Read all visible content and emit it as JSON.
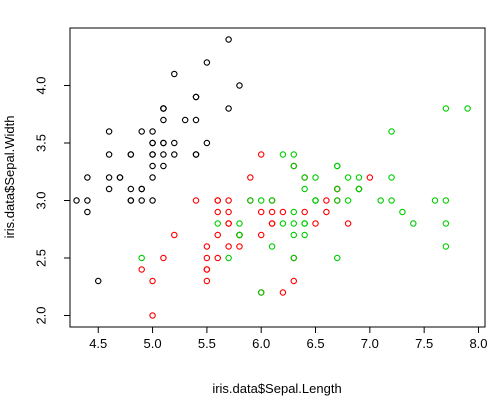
{
  "chart_data": {
    "type": "scatter",
    "title": "",
    "xlabel": "iris.data$Sepal.Length",
    "ylabel": "iris.data$Sepal.Width",
    "xlim": [
      4.24,
      8.06
    ],
    "ylim": [
      1.9,
      4.5
    ],
    "x_ticks": [
      "4.5",
      "5.0",
      "5.5",
      "6.0",
      "6.5",
      "7.0",
      "7.5",
      "8.0"
    ],
    "y_ticks": [
      "2.0",
      "2.5",
      "3.0",
      "3.5",
      "4.0"
    ],
    "grid": false,
    "legend": "none",
    "series": [
      {
        "color": "#000000",
        "points": [
          [
            5.1,
            3.5
          ],
          [
            4.9,
            3.0
          ],
          [
            4.7,
            3.2
          ],
          [
            4.6,
            3.1
          ],
          [
            5.0,
            3.6
          ],
          [
            5.4,
            3.9
          ],
          [
            4.6,
            3.4
          ],
          [
            5.0,
            3.4
          ],
          [
            4.4,
            2.9
          ],
          [
            4.9,
            3.1
          ],
          [
            5.4,
            3.7
          ],
          [
            4.8,
            3.4
          ],
          [
            4.8,
            3.0
          ],
          [
            4.3,
            3.0
          ],
          [
            5.8,
            4.0
          ],
          [
            5.7,
            4.4
          ],
          [
            5.4,
            3.9
          ],
          [
            5.1,
            3.5
          ],
          [
            5.7,
            3.8
          ],
          [
            5.1,
            3.8
          ],
          [
            5.4,
            3.4
          ],
          [
            5.1,
            3.7
          ],
          [
            4.6,
            3.6
          ],
          [
            5.1,
            3.3
          ],
          [
            4.8,
            3.4
          ],
          [
            5.0,
            3.0
          ],
          [
            5.0,
            3.4
          ],
          [
            5.2,
            3.5
          ],
          [
            5.2,
            3.4
          ],
          [
            4.7,
            3.2
          ],
          [
            4.8,
            3.1
          ],
          [
            5.4,
            3.4
          ],
          [
            5.2,
            4.1
          ],
          [
            5.5,
            4.2
          ],
          [
            4.9,
            3.1
          ],
          [
            5.0,
            3.2
          ],
          [
            5.5,
            3.5
          ],
          [
            4.9,
            3.6
          ],
          [
            4.4,
            3.0
          ],
          [
            5.1,
            3.4
          ],
          [
            5.0,
            3.5
          ],
          [
            4.5,
            2.3
          ],
          [
            4.4,
            3.2
          ],
          [
            5.0,
            3.5
          ],
          [
            5.1,
            3.8
          ],
          [
            4.8,
            3.0
          ],
          [
            5.1,
            3.8
          ],
          [
            4.6,
            3.2
          ],
          [
            5.3,
            3.7
          ],
          [
            5.0,
            3.3
          ]
        ]
      },
      {
        "color": "#ff0000",
        "points": [
          [
            7.0,
            3.2
          ],
          [
            6.4,
            3.2
          ],
          [
            6.9,
            3.1
          ],
          [
            5.5,
            2.3
          ],
          [
            6.5,
            2.8
          ],
          [
            5.7,
            2.8
          ],
          [
            6.3,
            3.3
          ],
          [
            4.9,
            2.4
          ],
          [
            6.6,
            2.9
          ],
          [
            5.2,
            2.7
          ],
          [
            5.0,
            2.0
          ],
          [
            5.9,
            3.0
          ],
          [
            6.0,
            2.2
          ],
          [
            6.1,
            2.9
          ],
          [
            5.6,
            2.9
          ],
          [
            6.7,
            3.1
          ],
          [
            5.6,
            3.0
          ],
          [
            5.8,
            2.7
          ],
          [
            6.2,
            2.2
          ],
          [
            5.6,
            2.5
          ],
          [
            5.9,
            3.2
          ],
          [
            6.1,
            2.8
          ],
          [
            6.3,
            2.5
          ],
          [
            6.1,
            2.8
          ],
          [
            6.4,
            2.9
          ],
          [
            6.6,
            3.0
          ],
          [
            6.8,
            2.8
          ],
          [
            6.7,
            3.0
          ],
          [
            6.0,
            2.9
          ],
          [
            5.7,
            2.6
          ],
          [
            5.5,
            2.4
          ],
          [
            5.5,
            2.4
          ],
          [
            5.8,
            2.7
          ],
          [
            6.0,
            2.7
          ],
          [
            5.4,
            3.0
          ],
          [
            6.0,
            3.4
          ],
          [
            6.7,
            3.1
          ],
          [
            6.3,
            2.3
          ],
          [
            5.6,
            3.0
          ],
          [
            5.5,
            2.5
          ],
          [
            5.5,
            2.6
          ],
          [
            6.1,
            3.0
          ],
          [
            5.8,
            2.6
          ],
          [
            5.0,
            2.3
          ],
          [
            5.6,
            2.7
          ],
          [
            5.7,
            3.0
          ],
          [
            5.7,
            2.9
          ],
          [
            6.2,
            2.9
          ],
          [
            5.1,
            2.5
          ],
          [
            5.7,
            2.8
          ]
        ]
      },
      {
        "color": "#00cd00",
        "points": [
          [
            6.3,
            3.3
          ],
          [
            5.8,
            2.7
          ],
          [
            7.1,
            3.0
          ],
          [
            6.3,
            2.9
          ],
          [
            6.5,
            3.0
          ],
          [
            7.6,
            3.0
          ],
          [
            4.9,
            2.5
          ],
          [
            7.3,
            2.9
          ],
          [
            6.7,
            2.5
          ],
          [
            7.2,
            3.6
          ],
          [
            6.5,
            3.2
          ],
          [
            6.4,
            2.7
          ],
          [
            6.8,
            3.0
          ],
          [
            5.7,
            2.5
          ],
          [
            5.8,
            2.8
          ],
          [
            6.4,
            3.2
          ],
          [
            6.5,
            3.0
          ],
          [
            7.7,
            3.8
          ],
          [
            7.7,
            2.6
          ],
          [
            6.0,
            2.2
          ],
          [
            6.9,
            3.2
          ],
          [
            5.6,
            2.8
          ],
          [
            7.7,
            2.8
          ],
          [
            6.3,
            2.7
          ],
          [
            6.7,
            3.3
          ],
          [
            7.2,
            3.2
          ],
          [
            6.2,
            2.8
          ],
          [
            6.1,
            3.0
          ],
          [
            6.4,
            2.8
          ],
          [
            7.2,
            3.0
          ],
          [
            7.4,
            2.8
          ],
          [
            7.9,
            3.8
          ],
          [
            6.4,
            2.8
          ],
          [
            6.3,
            2.8
          ],
          [
            6.1,
            2.6
          ],
          [
            7.7,
            3.0
          ],
          [
            6.3,
            3.4
          ],
          [
            6.4,
            3.1
          ],
          [
            6.0,
            3.0
          ],
          [
            6.9,
            3.1
          ],
          [
            6.7,
            3.1
          ],
          [
            6.9,
            3.1
          ],
          [
            5.8,
            2.7
          ],
          [
            6.8,
            3.2
          ],
          [
            6.7,
            3.3
          ],
          [
            6.7,
            3.0
          ],
          [
            6.3,
            2.5
          ],
          [
            6.5,
            3.0
          ],
          [
            6.2,
            3.4
          ],
          [
            5.9,
            3.0
          ]
        ]
      }
    ]
  }
}
